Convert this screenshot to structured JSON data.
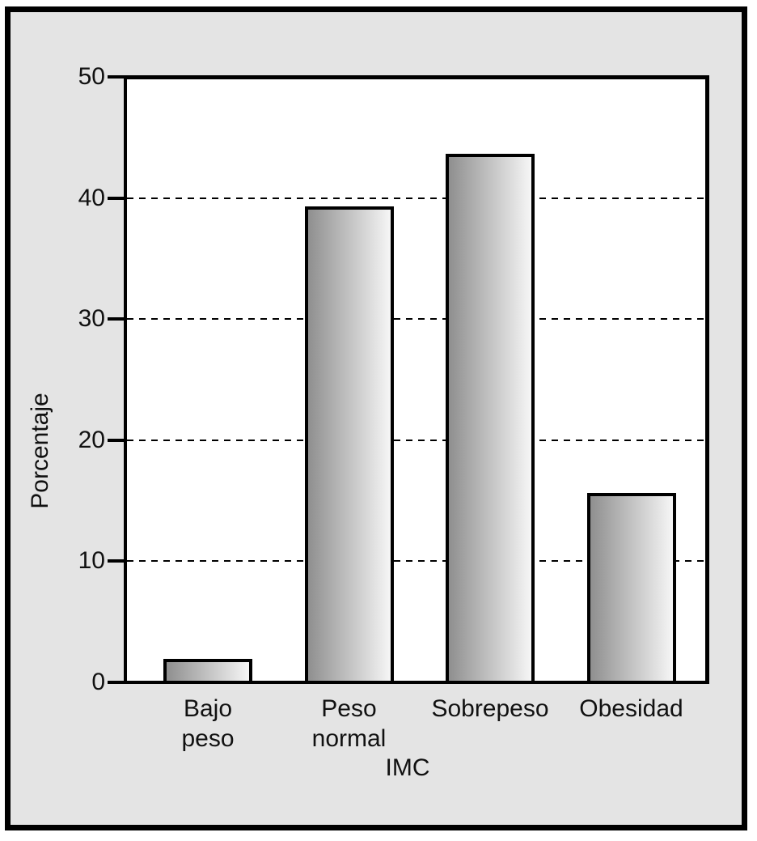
{
  "chart_data": {
    "type": "bar",
    "title": "",
    "categories": [
      "Bajo peso",
      "Peso normal",
      "Sobrepeso",
      "Obesidad"
    ],
    "category_lines": [
      [
        "Bajo",
        "peso"
      ],
      [
        "Peso",
        "normal"
      ],
      [
        "Sobrepeso"
      ],
      [
        "Obesidad"
      ]
    ],
    "values": [
      1.8,
      39.2,
      43.5,
      15.5
    ],
    "xlabel": "IMC",
    "ylabel": "Porcentaje",
    "ylim": [
      0,
      50
    ],
    "yticks": [
      0,
      10,
      20,
      30,
      40,
      50
    ],
    "gridline_values": [
      10,
      20,
      30,
      40
    ],
    "grid_style": "dashed",
    "legend_position": "none",
    "colors": {
      "figure_background": "#e4e4e4",
      "plot_background": "#ffffff",
      "axis": "#000000",
      "text": "#111111",
      "bar_gradient_left": "#8f8f8f",
      "bar_gradient_right": "#f6f6f6",
      "bar_border": "#000000"
    }
  }
}
